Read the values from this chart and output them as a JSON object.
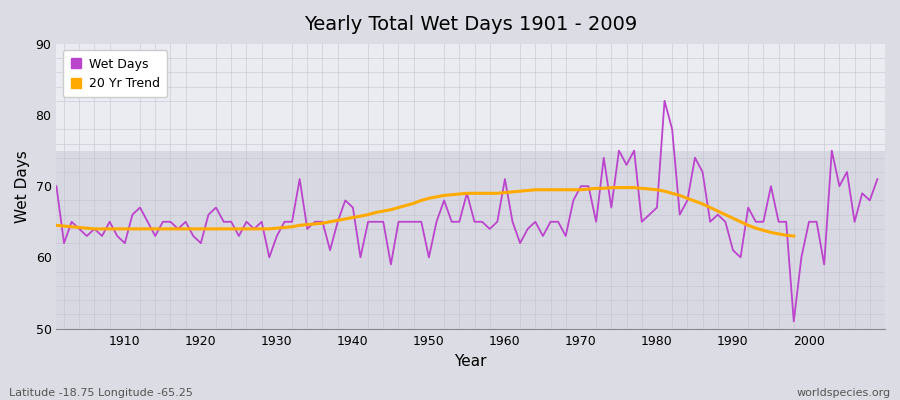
{
  "title": "Yearly Total Wet Days 1901 - 2009",
  "xlabel": "Year",
  "ylabel": "Wet Days",
  "ylim": [
    50,
    90
  ],
  "yticks": [
    50,
    60,
    70,
    80,
    90
  ],
  "xticks": [
    1910,
    1920,
    1930,
    1940,
    1950,
    1960,
    1970,
    1980,
    1990,
    2000
  ],
  "bg_color": "#dcdce4",
  "plot_bg_upper": "#e8e8f0",
  "plot_bg_lower": "#d8d8e2",
  "line_color": "#bb44cc",
  "trend_color": "#ffaa00",
  "footer_left": "Latitude -18.75 Longitude -65.25",
  "footer_right": "worldspecies.org",
  "legend_labels": [
    "Wet Days",
    "20 Yr Trend"
  ],
  "years": [
    1901,
    1902,
    1903,
    1904,
    1905,
    1906,
    1907,
    1908,
    1909,
    1910,
    1911,
    1912,
    1913,
    1914,
    1915,
    1916,
    1917,
    1918,
    1919,
    1920,
    1921,
    1922,
    1923,
    1924,
    1925,
    1926,
    1927,
    1928,
    1929,
    1930,
    1931,
    1932,
    1933,
    1934,
    1935,
    1936,
    1937,
    1938,
    1939,
    1940,
    1941,
    1942,
    1943,
    1944,
    1945,
    1946,
    1947,
    1948,
    1949,
    1950,
    1951,
    1952,
    1953,
    1954,
    1955,
    1956,
    1957,
    1958,
    1959,
    1960,
    1961,
    1962,
    1963,
    1964,
    1965,
    1966,
    1967,
    1968,
    1969,
    1970,
    1971,
    1972,
    1973,
    1974,
    1975,
    1976,
    1977,
    1978,
    1979,
    1980,
    1981,
    1982,
    1983,
    1984,
    1985,
    1986,
    1987,
    1988,
    1989,
    1990,
    1991,
    1992,
    1993,
    1994,
    1995,
    1996,
    1997,
    1998,
    1999,
    2000,
    2001,
    2002,
    2003,
    2004,
    2005,
    2006,
    2007,
    2008,
    2009
  ],
  "wet_days": [
    70,
    62,
    65,
    64,
    63,
    64,
    63,
    65,
    63,
    62,
    66,
    67,
    65,
    63,
    65,
    65,
    64,
    65,
    63,
    62,
    66,
    67,
    65,
    65,
    63,
    65,
    64,
    65,
    60,
    63,
    65,
    65,
    71,
    64,
    65,
    65,
    61,
    65,
    68,
    67,
    60,
    65,
    65,
    65,
    59,
    65,
    65,
    65,
    65,
    60,
    65,
    68,
    65,
    65,
    69,
    65,
    65,
    64,
    65,
    71,
    65,
    62,
    64,
    65,
    63,
    65,
    65,
    63,
    68,
    70,
    70,
    65,
    74,
    67,
    75,
    73,
    75,
    65,
    66,
    67,
    82,
    78,
    66,
    68,
    74,
    72,
    65,
    66,
    65,
    61,
    60,
    67,
    65,
    65,
    70,
    65,
    65,
    51,
    60,
    65,
    65,
    59,
    75,
    70,
    72,
    65,
    69,
    68,
    71
  ],
  "trend": [
    64.5,
    64.4,
    64.3,
    64.2,
    64.1,
    64.0,
    64.0,
    64.0,
    64.0,
    64.0,
    64.0,
    64.0,
    64.0,
    64.0,
    64.0,
    64.0,
    64.0,
    64.0,
    64.0,
    64.0,
    64.0,
    64.0,
    64.0,
    64.0,
    64.0,
    64.0,
    64.0,
    64.0,
    64.0,
    64.1,
    64.2,
    64.3,
    64.5,
    64.6,
    64.7,
    64.8,
    65.0,
    65.2,
    65.4,
    65.6,
    65.8,
    66.0,
    66.3,
    66.5,
    66.7,
    67.0,
    67.3,
    67.6,
    68.0,
    68.3,
    68.5,
    68.7,
    68.8,
    68.9,
    69.0,
    69.0,
    69.0,
    69.0,
    69.0,
    69.1,
    69.2,
    69.3,
    69.4,
    69.5,
    69.5,
    69.5,
    69.5,
    69.5,
    69.5,
    69.5,
    69.6,
    69.7,
    69.7,
    69.8,
    69.8,
    69.8,
    69.8,
    69.7,
    69.6,
    69.5,
    69.3,
    69.0,
    68.7,
    68.3,
    67.9,
    67.5,
    67.0,
    66.5,
    66.0,
    65.5,
    65.0,
    64.5,
    64.1,
    63.8,
    63.5,
    63.3,
    63.1,
    63.0,
    null,
    null,
    null,
    null,
    null,
    null,
    null,
    null,
    null,
    null,
    null
  ]
}
